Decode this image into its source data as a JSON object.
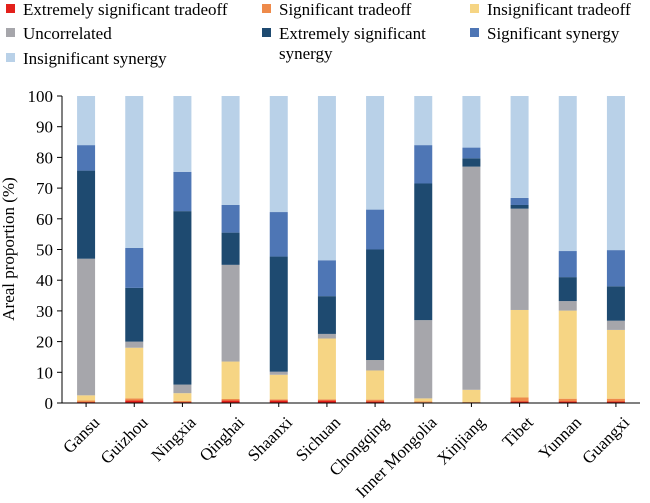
{
  "chart_data": {
    "type": "bar",
    "stacked": true,
    "ylabel": "Areal proportion (%)",
    "ylim": [
      0,
      100
    ],
    "yticks": [
      0,
      10,
      20,
      30,
      40,
      50,
      60,
      70,
      80,
      90,
      100
    ],
    "grid": false,
    "legend_position": "top",
    "categories": [
      "Gansu",
      "Guizhou",
      "Ningxia",
      "Qinghai",
      "Shaanxi",
      "Sichuan",
      "Chongqing",
      "Inner Mongolia",
      "Xinjiang",
      "Tibet",
      "Yunnan",
      "Guangxi"
    ],
    "series": [
      {
        "name": "Extremely significant tradeoff",
        "color": "#e3201b",
        "values": [
          0.3,
          0.8,
          0.3,
          0.8,
          0.8,
          0.8,
          0.5,
          0.2,
          0.1,
          0.5,
          0.5,
          0.5
        ]
      },
      {
        "name": "Significant tradeoff",
        "color": "#ee8a4a",
        "values": [
          0.5,
          0.7,
          0.4,
          0.5,
          0.4,
          0.4,
          0.6,
          0.3,
          0.2,
          1.3,
          0.9,
          0.9
        ]
      },
      {
        "name": "Insignificant tradeoff",
        "color": "#f6d584",
        "values": [
          1.7,
          16.5,
          2.5,
          12.2,
          8.0,
          19.8,
          9.5,
          1.0,
          4.0,
          28.5,
          28.7,
          22.4
        ]
      },
      {
        "name": "Uncorrelated",
        "color": "#a6a6ab",
        "values": [
          44.5,
          2.0,
          2.8,
          31.5,
          1.0,
          1.5,
          3.4,
          25.5,
          72.7,
          33.0,
          3.1,
          3.0
        ]
      },
      {
        "name": "Extremely significant synergy",
        "color": "#1e4a70",
        "values": [
          28.7,
          17.5,
          56.5,
          10.5,
          37.5,
          12.3,
          36.0,
          44.5,
          2.7,
          1.2,
          7.8,
          11.2
        ]
      },
      {
        "name": "Significant synergy",
        "color": "#4e76b5",
        "values": [
          8.3,
          13.0,
          12.8,
          9.0,
          14.5,
          11.7,
          13.0,
          12.5,
          3.5,
          2.3,
          8.5,
          11.8
        ]
      },
      {
        "name": "Insignificant synergy",
        "color": "#b9d1e8",
        "values": [
          16.0,
          49.5,
          24.7,
          35.5,
          37.8,
          53.5,
          37.0,
          16.0,
          16.8,
          33.2,
          50.5,
          50.2
        ]
      }
    ]
  }
}
